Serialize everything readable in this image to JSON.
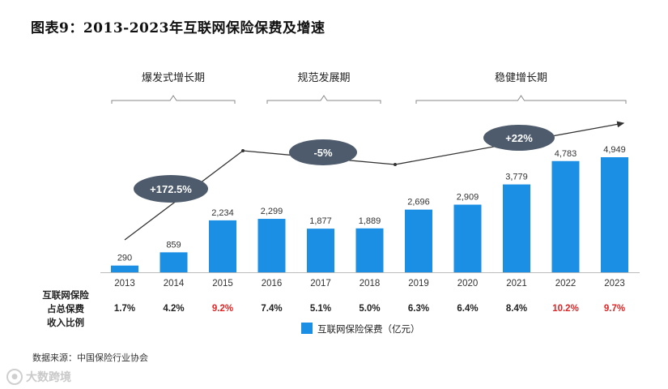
{
  "title": "图表9：2013-2023年互联网保险保费及增速",
  "chart_data": {
    "type": "bar",
    "categories": [
      "2013",
      "2014",
      "2015",
      "2016",
      "2017",
      "2018",
      "2019",
      "2020",
      "2021",
      "2022",
      "2023"
    ],
    "series": [
      {
        "name": "互联网保险保费（亿元）",
        "values": [
          290,
          859,
          2234,
          2299,
          1877,
          1889,
          2696,
          2909,
          3779,
          4783,
          4949
        ],
        "color": "#1a8fe3"
      }
    ],
    "value_labels": [
      "290",
      "859",
      "2,234",
      "2,299",
      "1,877",
      "1,889",
      "2,696",
      "2,909",
      "3,779",
      "4,783",
      "4,949"
    ],
    "ylim": [
      0,
      5000
    ],
    "ratio_row": {
      "label_lines": [
        "互联网保险",
        "占总保费",
        "收入比例"
      ],
      "values": [
        "1.7%",
        "4.2%",
        "9.2%",
        "7.4%",
        "5.1%",
        "5.0%",
        "6.3%",
        "6.4%",
        "8.4%",
        "10.2%",
        "9.7%"
      ],
      "highlighted": [
        false,
        false,
        true,
        false,
        false,
        false,
        false,
        false,
        false,
        true,
        true
      ],
      "highlight_color": "#e02424"
    },
    "phases": [
      {
        "label": "爆发式增长期",
        "growth": "+172.5%"
      },
      {
        "label": "规范发展期",
        "growth": "-5%"
      },
      {
        "label": "稳健增长期",
        "growth": "+22%"
      }
    ],
    "legend": "互联网保险保费（亿元）"
  },
  "source": "数据来源：中国保险行业协会",
  "watermark": "大数跨境",
  "colors": {
    "bar": "#1a8fe3",
    "bubble": "#4d5b6c",
    "trend": "#333333"
  }
}
